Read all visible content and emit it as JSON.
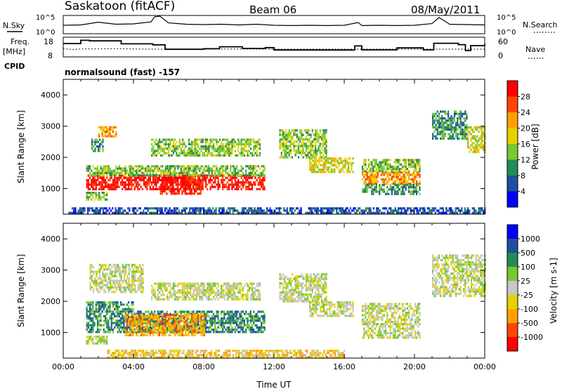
{
  "header": {
    "station": "Saskatoon (fitACF)",
    "beam": "Beam 06",
    "date": "08/May/2011"
  },
  "left_labels": {
    "nsky": "N.Sky",
    "freq": "Freq.",
    "freq_unit": "[MHz]",
    "cpid": "CPID"
  },
  "right_labels": {
    "nsearch": "N.Search",
    "nave": "Nave"
  },
  "cpid_text": "normalsound (fast) -157",
  "colors": {
    "noise_trace": "#000000",
    "background_scatter": "#c8c8c8"
  },
  "chart_data": [
    {
      "type": "line",
      "name": "noise-panel",
      "left_axis": {
        "label": "N.Sky",
        "ticks": [
          "10^5",
          "10^0"
        ]
      },
      "right_axis": {
        "label": "N.Search",
        "ticks": [
          "10^5",
          "10^0"
        ]
      },
      "x": [
        0,
        1,
        2,
        3,
        4,
        5,
        5.2,
        5.5,
        6,
        7,
        8,
        9,
        10,
        11,
        12,
        13,
        14,
        15,
        16,
        16.8,
        17,
        18,
        19,
        20,
        21,
        21.4,
        22,
        23,
        24
      ],
      "y_log10": [
        2.3,
        2.4,
        3.2,
        2.6,
        2.7,
        3.3,
        4.8,
        5.0,
        3.0,
        2.6,
        2.5,
        2.6,
        2.4,
        2.6,
        2.3,
        2.2,
        2.3,
        2.2,
        2.3,
        3.1,
        2.2,
        2.3,
        2.2,
        2.3,
        2.8,
        4.6,
        2.6,
        2.5,
        2.4
      ]
    },
    {
      "type": "line",
      "name": "frequency-panel",
      "left_axis": {
        "label": "Freq. [MHz]",
        "ticks": [
          8,
          18
        ],
        "range": [
          8,
          18
        ]
      },
      "right_axis": {
        "label": "Nave",
        "ticks": [
          0,
          60
        ],
        "range": [
          0,
          60
        ]
      },
      "freq_x": [
        0,
        1,
        1.5,
        3.3,
        5.1,
        5.8,
        8.0,
        8.9,
        10.2,
        11.5,
        12.0,
        16.6,
        17.0,
        19.0,
        20.5,
        21.1,
        22.5,
        22.9,
        23.2,
        24
      ],
      "freq_y": [
        15.5,
        17.8,
        17.4,
        15.3,
        14.6,
        11.4,
        11.8,
        13.2,
        12.0,
        12.6,
        10.9,
        13.8,
        11.0,
        12.4,
        11.0,
        15.7,
        14.7,
        10.5,
        14.0,
        15.2
      ],
      "nave_x": [
        0,
        0.5,
        1,
        3,
        5,
        8,
        10,
        12,
        14,
        16,
        18,
        20,
        22,
        24
      ],
      "nave_y": [
        27,
        22,
        25,
        26,
        24,
        24,
        25,
        24,
        24,
        24,
        24,
        24,
        24,
        24
      ]
    },
    {
      "type": "heatmap",
      "name": "power-panel",
      "xlabel": "",
      "ylabel": "Slant Range [km]",
      "xlim": [
        0,
        24
      ],
      "ylim": [
        180,
        4500
      ],
      "yticks": [
        1000,
        2000,
        3000,
        4000
      ],
      "colorbar": {
        "label": "Power [dB]",
        "tick_labels": [
          "28",
          "24",
          "20",
          "16",
          "12",
          "8",
          "4"
        ],
        "colors": [
          "#ff0000",
          "#ff4500",
          "#ffa000",
          "#e6d200",
          "#78c832",
          "#238c55",
          "#1e50a0",
          "#0000ff"
        ]
      },
      "regions": [
        {
          "t0": 1.3,
          "t1": 11.5,
          "r0": 950,
          "r1": 1450,
          "level": 7
        },
        {
          "t0": 5.5,
          "t1": 7.8,
          "r0": 850,
          "r1": 1450,
          "level": 7
        },
        {
          "t0": 1.3,
          "t1": 11.5,
          "r0": 1450,
          "r1": 1750,
          "level": 3
        },
        {
          "t0": 2.0,
          "t1": 3.0,
          "r0": 2700,
          "r1": 3000,
          "level": 5
        },
        {
          "t0": 1.6,
          "t1": 2.3,
          "r0": 2200,
          "r1": 2600,
          "level": 2
        },
        {
          "t0": 5.0,
          "t1": 11.2,
          "r0": 2050,
          "r1": 2600,
          "level": 3
        },
        {
          "t0": 12.3,
          "t1": 15.0,
          "r0": 2000,
          "r1": 2900,
          "level": 3
        },
        {
          "t0": 14.0,
          "t1": 16.5,
          "r0": 1500,
          "r1": 2000,
          "level": 4
        },
        {
          "t0": 17.0,
          "t1": 20.3,
          "r0": 1150,
          "r1": 1550,
          "level": 5
        },
        {
          "t0": 17.0,
          "t1": 20.3,
          "r0": 800,
          "r1": 1150,
          "level": 2
        },
        {
          "t0": 17.0,
          "t1": 20.3,
          "r0": 1550,
          "r1": 1950,
          "level": 3
        },
        {
          "t0": 21.0,
          "t1": 23.0,
          "r0": 2600,
          "r1": 3500,
          "level": 2
        },
        {
          "t0": 23.0,
          "t1": 24.0,
          "r0": 2200,
          "r1": 3000,
          "level": 4
        },
        {
          "t0": 1.3,
          "t1": 2.5,
          "r0": 650,
          "r1": 900,
          "level": 3
        },
        {
          "t0": 0.3,
          "t1": 24.0,
          "r0": 200,
          "r1": 400,
          "level": 1
        }
      ]
    },
    {
      "type": "heatmap",
      "name": "velocity-panel",
      "xlabel": "Time UT",
      "ylabel": "Slant Range [km]",
      "xlim": [
        0,
        24
      ],
      "ylim": [
        180,
        4500
      ],
      "yticks": [
        1000,
        2000,
        3000,
        4000
      ],
      "xtick_labels": [
        "00:00",
        "04:00",
        "08:00",
        "12:00",
        "16:00",
        "20:00",
        "00:00"
      ],
      "colorbar": {
        "label": "Velocity [m s-1]",
        "tick_labels": [
          "1000",
          "500",
          "100",
          "25",
          "-25",
          "-100",
          "-500",
          "-1000"
        ],
        "colors": [
          "#0000ff",
          "#1e50a0",
          "#238c55",
          "#78c832",
          "#c8c8c8",
          "#e6d200",
          "#ffa000",
          "#ff4500",
          "#ff0000"
        ]
      },
      "regions": [
        {
          "t0": 1.3,
          "t1": 11.5,
          "r0": 1000,
          "r1": 1700,
          "level": 6
        },
        {
          "t0": 3.5,
          "t1": 8.0,
          "r0": 900,
          "r1": 1600,
          "level": 2
        },
        {
          "t0": 1.3,
          "t1": 4.0,
          "r0": 1700,
          "r1": 2000,
          "level": 6
        },
        {
          "t0": 1.5,
          "t1": 4.5,
          "r0": 2300,
          "r1": 3200,
          "level": 4
        },
        {
          "t0": 5.0,
          "t1": 11.2,
          "r0": 2050,
          "r1": 2600,
          "level": 4
        },
        {
          "t0": 12.3,
          "t1": 15.0,
          "r0": 2000,
          "r1": 2900,
          "level": 4
        },
        {
          "t0": 14.0,
          "t1": 16.5,
          "r0": 1500,
          "r1": 2000,
          "level": 4
        },
        {
          "t0": 17.0,
          "t1": 20.3,
          "r0": 800,
          "r1": 1950,
          "level": 4
        },
        {
          "t0": 21.0,
          "t1": 24.0,
          "r0": 2200,
          "r1": 3500,
          "level": 4
        },
        {
          "t0": 1.3,
          "t1": 2.5,
          "r0": 650,
          "r1": 900,
          "level": 4
        },
        {
          "t0": 2.5,
          "t1": 16.0,
          "r0": 200,
          "r1": 450,
          "level": 3
        }
      ]
    }
  ]
}
